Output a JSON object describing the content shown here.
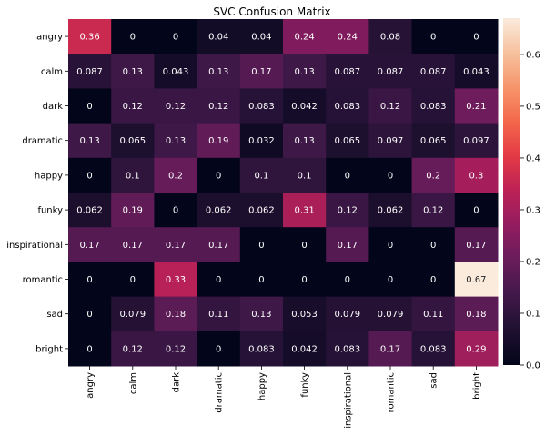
{
  "chart_data": {
    "type": "heatmap",
    "title": "SVC Confusion Matrix",
    "xlabel": "",
    "ylabel": "",
    "row_labels": [
      "angry",
      "calm",
      "dark",
      "dramatic",
      "happy",
      "funky",
      "inspirational",
      "romantic",
      "sad",
      "bright"
    ],
    "col_labels": [
      "angry",
      "calm",
      "dark",
      "dramatic",
      "happy",
      "funky",
      "inspirational",
      "romantic",
      "sad",
      "bright"
    ],
    "cell_labels": [
      [
        "0.36",
        "0",
        "0",
        "0.04",
        "0.04",
        "0.24",
        "0.24",
        "0.08",
        "0",
        "0"
      ],
      [
        "0.087",
        "0.13",
        "0.043",
        "0.13",
        "0.17",
        "0.13",
        "0.087",
        "0.087",
        "0.087",
        "0.043"
      ],
      [
        "0",
        "0.12",
        "0.12",
        "0.12",
        "0.083",
        "0.042",
        "0.083",
        "0.12",
        "0.083",
        "0.21"
      ],
      [
        "0.13",
        "0.065",
        "0.13",
        "0.19",
        "0.032",
        "0.13",
        "0.065",
        "0.097",
        "0.065",
        "0.097"
      ],
      [
        "0",
        "0.1",
        "0.2",
        "0",
        "0.1",
        "0.1",
        "0",
        "0",
        "0.2",
        "0.3"
      ],
      [
        "0.062",
        "0.19",
        "0",
        "0.062",
        "0.062",
        "0.31",
        "0.12",
        "0.062",
        "0.12",
        "0"
      ],
      [
        "0.17",
        "0.17",
        "0.17",
        "0.17",
        "0",
        "0",
        "0.17",
        "0",
        "0",
        "0.17"
      ],
      [
        "0",
        "0",
        "0.33",
        "0",
        "0",
        "0",
        "0",
        "0",
        "0",
        "0.67"
      ],
      [
        "0",
        "0.079",
        "0.18",
        "0.11",
        "0.13",
        "0.053",
        "0.079",
        "0.079",
        "0.11",
        "0.18"
      ],
      [
        "0",
        "0.12",
        "0.12",
        "0",
        "0.083",
        "0.042",
        "0.083",
        "0.17",
        "0.083",
        "0.29"
      ]
    ],
    "values": [
      [
        0.36,
        0,
        0,
        0.04,
        0.04,
        0.24,
        0.24,
        0.08,
        0,
        0
      ],
      [
        0.087,
        0.13,
        0.043,
        0.13,
        0.17,
        0.13,
        0.087,
        0.087,
        0.087,
        0.043
      ],
      [
        0,
        0.12,
        0.12,
        0.12,
        0.083,
        0.042,
        0.083,
        0.12,
        0.083,
        0.21
      ],
      [
        0.13,
        0.065,
        0.13,
        0.19,
        0.032,
        0.13,
        0.065,
        0.097,
        0.065,
        0.097
      ],
      [
        0,
        0.1,
        0.2,
        0,
        0.1,
        0.1,
        0,
        0,
        0.2,
        0.3
      ],
      [
        0.062,
        0.19,
        0,
        0.062,
        0.062,
        0.31,
        0.12,
        0.062,
        0.12,
        0
      ],
      [
        0.17,
        0.17,
        0.17,
        0.17,
        0,
        0,
        0.17,
        0,
        0,
        0.17
      ],
      [
        0,
        0,
        0.33,
        0,
        0,
        0,
        0,
        0,
        0,
        0.67
      ],
      [
        0,
        0.079,
        0.18,
        0.11,
        0.13,
        0.053,
        0.079,
        0.079,
        0.11,
        0.18
      ],
      [
        0,
        0.12,
        0.12,
        0,
        0.083,
        0.042,
        0.083,
        0.17,
        0.083,
        0.29
      ]
    ],
    "vmin": 0,
    "vmax": 0.67,
    "colormap": "rocket",
    "colorbar": {
      "ticks": [
        0.0,
        0.1,
        0.2,
        0.3,
        0.4,
        0.5,
        0.6
      ],
      "tick_labels": [
        "0.0",
        "0.1",
        "0.2",
        "0.3",
        "0.4",
        "0.5",
        "0.6"
      ]
    },
    "grid": false,
    "legend": "colorbar-right"
  }
}
